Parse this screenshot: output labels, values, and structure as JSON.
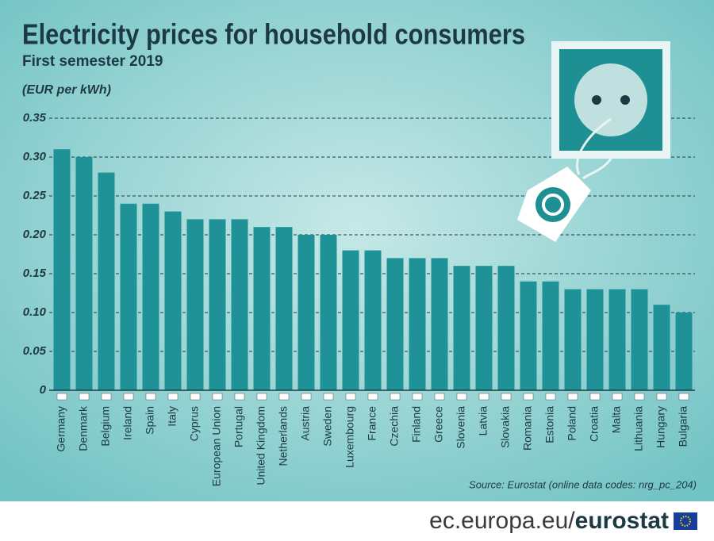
{
  "chart_data": {
    "type": "bar",
    "title": "Electricity prices for household consumers",
    "subtitle": "First semester 2019",
    "y_label": "(EUR per kWh)",
    "source": "Source: Eurostat (online data codes: nrg_pc_204)",
    "categories": [
      "Germany",
      "Denmark",
      "Belgium",
      "Ireland",
      "Spain",
      "Italy",
      "Cyprus",
      "European Union",
      "Portugal",
      "United Kingdom",
      "Netherlands",
      "Austria",
      "Sweden",
      "Luxembourg",
      "France",
      "Czechia",
      "Finland",
      "Greece",
      "Slovenia",
      "Latvia",
      "Slovakia",
      "Romania",
      "Estonia",
      "Poland",
      "Croatia",
      "Malta",
      "Lithuania",
      "Hungary",
      "Bulgaria"
    ],
    "values": [
      0.31,
      0.3,
      0.28,
      0.24,
      0.24,
      0.23,
      0.22,
      0.22,
      0.22,
      0.21,
      0.21,
      0.2,
      0.2,
      0.18,
      0.18,
      0.17,
      0.17,
      0.17,
      0.16,
      0.16,
      0.16,
      0.14,
      0.14,
      0.13,
      0.13,
      0.13,
      0.13,
      0.11,
      0.1
    ],
    "color": "#1f9298",
    "ylim": [
      0,
      0.35
    ],
    "yticks": [
      0,
      0.05,
      {
        "value": 0.1,
        "label": "0.10"
      },
      0.15,
      {
        "value": 0.2,
        "label": "0.20"
      },
      0.25,
      {
        "value": 0.3,
        "label": "0.30"
      },
      0.35
    ],
    "grid": true
  },
  "footer": {
    "site": "ec.europa.eu/",
    "brand": "eurostat"
  }
}
